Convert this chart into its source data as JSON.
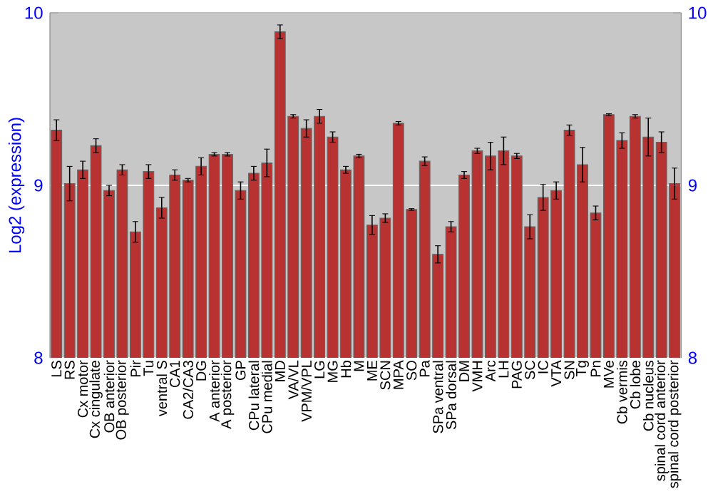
{
  "chart_data": {
    "type": "bar",
    "ylabel": "Log2 (expression)",
    "categories": [
      "LS",
      "RS",
      "Cx motor",
      "Cx cingulate",
      "OB anterior",
      "OB posterior",
      "Pir",
      "Tu",
      "ventral S",
      "CA1",
      "CA2/CA3",
      "DG",
      "A anterior",
      "A posterior",
      "GP",
      "CPu lateral",
      "CPu medial",
      "MD",
      "VA/VL",
      "VPM/VPL",
      "LG",
      "MG",
      "Hb",
      "M",
      "ME",
      "SCN",
      "MPA",
      "SO",
      "Pa",
      "SPa ventral",
      "SPa dorsal",
      "DM",
      "VMH",
      "Arc",
      "LH",
      "PAG",
      "SC",
      "IC",
      "VTA",
      "SN",
      "Tg",
      "Pn",
      "MVe",
      "Cb vermis",
      "Cb lobe",
      "Cb nucleus",
      "spinal cord anterior",
      "spinal cord posterior"
    ],
    "values": [
      9.32,
      9.01,
      9.09,
      9.23,
      8.97,
      9.09,
      8.73,
      9.08,
      8.87,
      9.06,
      9.03,
      9.11,
      9.18,
      9.18,
      8.97,
      9.07,
      9.13,
      9.89,
      9.4,
      9.33,
      9.4,
      9.28,
      9.09,
      9.17,
      8.77,
      8.81,
      9.36,
      8.86,
      9.14,
      8.6,
      8.76,
      9.06,
      9.2,
      9.17,
      9.2,
      9.17,
      8.76,
      8.93,
      8.97,
      9.32,
      9.12,
      8.84,
      9.41,
      9.26,
      9.4,
      9.28,
      9.25,
      9.01
    ],
    "errors": [
      0.06,
      0.1,
      0.05,
      0.04,
      0.03,
      0.03,
      0.06,
      0.04,
      0.06,
      0.03,
      0.01,
      0.05,
      0.01,
      0.01,
      0.05,
      0.04,
      0.08,
      0.04,
      0.01,
      0.05,
      0.04,
      0.03,
      0.02,
      0.01,
      0.055,
      0.025,
      0.01,
      0.005,
      0.025,
      0.05,
      0.03,
      0.02,
      0.015,
      0.08,
      0.08,
      0.015,
      0.07,
      0.075,
      0.05,
      0.03,
      0.1,
      0.04,
      0.005,
      0.045,
      0.01,
      0.11,
      0.06,
      0.09
    ],
    "color": "#b83232",
    "ylim": [
      8,
      10
    ],
    "yticks": [
      8,
      9,
      10
    ],
    "y2lim": [
      8,
      10
    ],
    "y2ticks": [
      8,
      9,
      10
    ],
    "grid": "y"
  }
}
